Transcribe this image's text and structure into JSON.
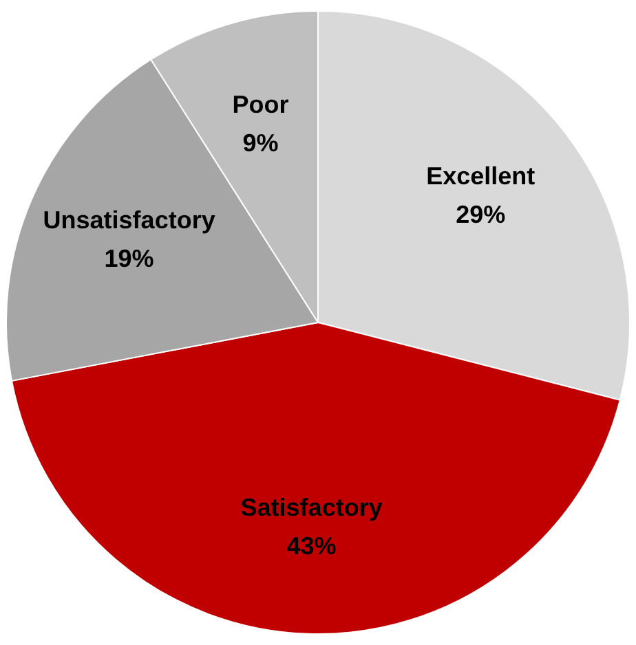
{
  "chart_data": {
    "type": "pie",
    "categories": [
      "Excellent",
      "Satisfactory",
      "Unsatisfactory",
      "Poor"
    ],
    "values": [
      29,
      43,
      19,
      9
    ],
    "colors": [
      "#d9d9d9",
      "#c00000",
      "#a6a6a6",
      "#bfbfbf"
    ],
    "value_labels": [
      "29%",
      "43%",
      "19%",
      "9%"
    ],
    "legend": false
  }
}
